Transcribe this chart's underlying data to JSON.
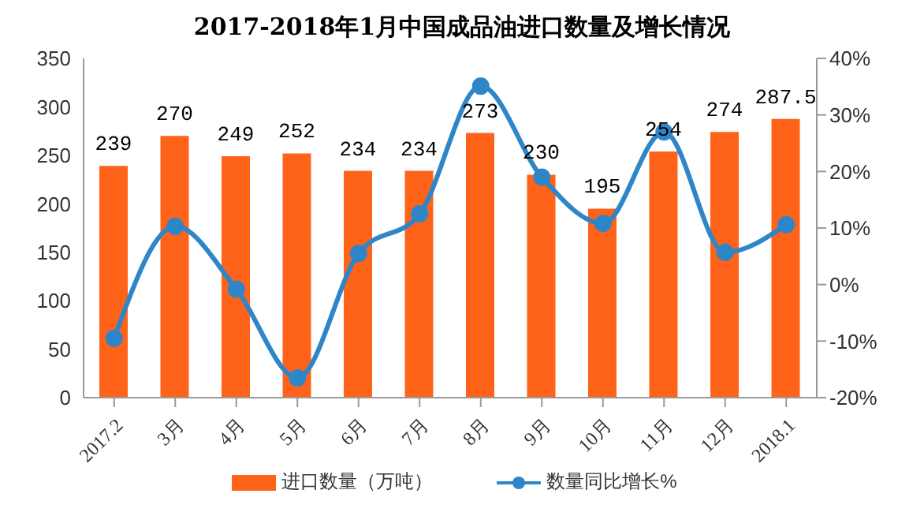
{
  "chart_data": {
    "type": "bar",
    "title": "2017-2018年1月中国成品油进口数量及增长情况",
    "categories": [
      "2017.2",
      "3月",
      "4月",
      "5月",
      "6月",
      "7月",
      "8月",
      "9月",
      "10月",
      "11月",
      "12月",
      "2018.1"
    ],
    "series": [
      {
        "name": "进口数量（万吨）",
        "color": "#ff6319",
        "values": [
          239,
          270,
          249,
          252,
          234,
          234,
          273,
          230,
          195,
          254,
          274,
          287.5
        ],
        "value_labels": [
          "239",
          "270",
          "249",
          "252",
          "234",
          "234",
          "273",
          "230",
          "195",
          "254",
          "274",
          "287.5"
        ]
      },
      {
        "name": "数量同比增长%",
        "type": "line",
        "axis": "y2",
        "color": "#2e86c8",
        "values": [
          -9.5,
          10.3,
          -0.8,
          -16.5,
          5.5,
          12.5,
          35.1,
          19,
          10.8,
          27,
          5.7,
          10.6
        ]
      }
    ],
    "ylim": [
      0,
      350
    ],
    "yticks": [
      0,
      50,
      100,
      150,
      200,
      250,
      300,
      350
    ],
    "y2lim": [
      -20,
      40
    ],
    "y2ticks": [
      {
        "value": -20,
        "label": "-20%"
      },
      {
        "value": -10,
        "label": "-10%"
      },
      {
        "value": 0,
        "label": "0%"
      },
      {
        "value": 10,
        "label": "10%"
      },
      {
        "value": 20,
        "label": "20%"
      },
      {
        "value": 30,
        "label": "30%"
      },
      {
        "value": 40,
        "label": "40%"
      }
    ],
    "marker": "circle",
    "legend": "bottom",
    "grid": false
  }
}
